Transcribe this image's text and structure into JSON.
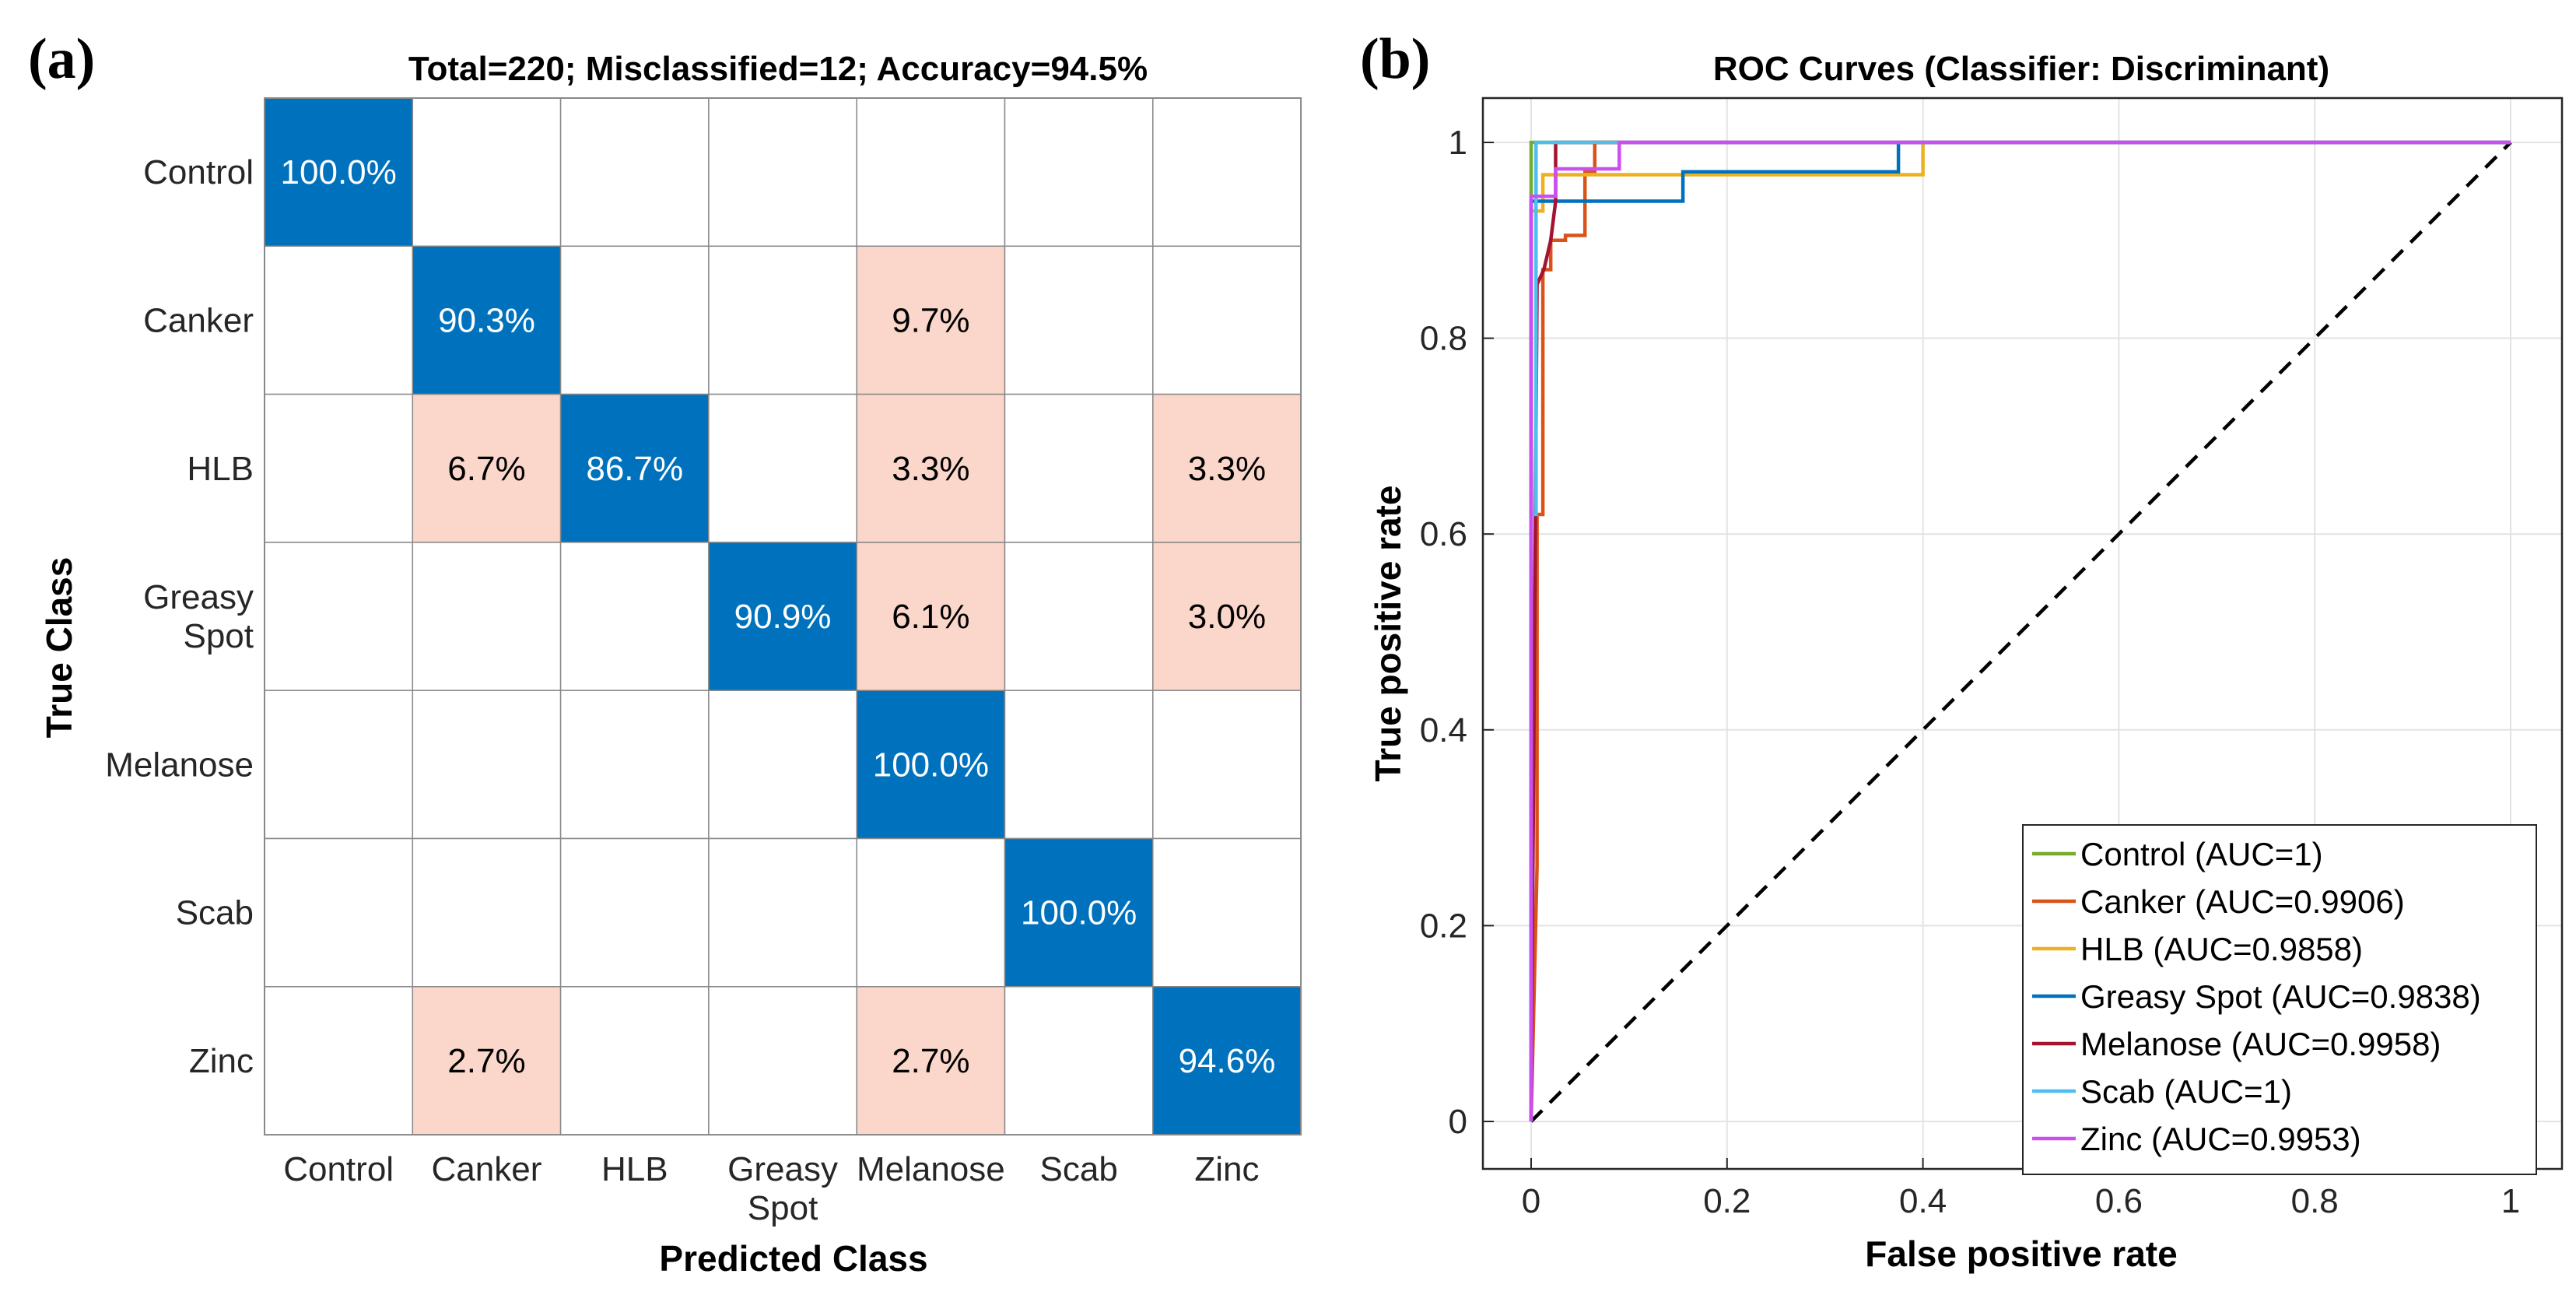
{
  "panel_a": {
    "label": "(a)",
    "chart_data": {
      "type": "heatmap",
      "title": "Total=220; Misclassified=12; Accuracy=94.5%",
      "xlabel": "Predicted Class",
      "ylabel": "True Class",
      "row_labels": [
        [
          "Control"
        ],
        [
          "Canker"
        ],
        [
          "HLB"
        ],
        [
          "Greasy",
          "Spot"
        ],
        [
          "Melanose"
        ],
        [
          "Scab"
        ],
        [
          "Zinc"
        ]
      ],
      "col_labels": [
        [
          "Control"
        ],
        [
          "Canker"
        ],
        [
          "HLB"
        ],
        [
          "Greasy",
          "Spot"
        ],
        [
          "Melanose"
        ],
        [
          "Scab"
        ],
        [
          "Zinc"
        ]
      ],
      "cells": [
        [
          100.0,
          null,
          null,
          null,
          null,
          null,
          null
        ],
        [
          null,
          90.3,
          null,
          null,
          9.7,
          null,
          null
        ],
        [
          null,
          6.7,
          86.7,
          null,
          3.3,
          null,
          3.3
        ],
        [
          null,
          null,
          null,
          90.9,
          6.1,
          null,
          3.0
        ],
        [
          null,
          null,
          null,
          null,
          100.0,
          null,
          null
        ],
        [
          null,
          null,
          null,
          null,
          null,
          100.0,
          null
        ],
        [
          null,
          2.7,
          null,
          null,
          2.7,
          null,
          94.6
        ]
      ],
      "value_suffix": "%",
      "colors": {
        "diagonal": "#0072BD",
        "off_diagonal": "#FAD7CA",
        "diagonal_text": "#ffffff",
        "off_text": "#000000",
        "grid": "#888888"
      }
    }
  },
  "panel_b": {
    "label": "(b)",
    "chart_data": {
      "type": "line",
      "title": "ROC Curves (Classifier: Discriminant)",
      "xlabel": "False positive rate",
      "ylabel": "True positive rate",
      "xlim": [
        0,
        1
      ],
      "ylim": [
        0,
        1
      ],
      "xticks": [
        0,
        0.2,
        0.4,
        0.6,
        0.8,
        1
      ],
      "yticks": [
        0,
        0.2,
        0.4,
        0.6,
        0.8,
        1
      ],
      "xtick_labels": [
        "0",
        "0.2",
        "0.4",
        "0.6",
        "0.8",
        "1"
      ],
      "ytick_labels": [
        "0",
        "0.2",
        "0.4",
        "0.6",
        "0.8",
        "1"
      ],
      "grid": true,
      "legend_position": "bottom-right",
      "series": [
        {
          "name": "Control (AUC=1)",
          "color": "#77AC30",
          "x": [
            0,
            0,
            1
          ],
          "y": [
            0,
            1,
            1
          ]
        },
        {
          "name": "Canker (AUC=0.9906)",
          "color": "#D95319",
          "x": [
            0,
            0.006,
            0.006,
            0.012,
            0.012,
            0.02,
            0.02,
            0.035,
            0.035,
            0.055,
            0.055,
            0.065,
            0.065,
            1
          ],
          "y": [
            0,
            0.26,
            0.62,
            0.62,
            0.87,
            0.87,
            0.9,
            0.9,
            0.905,
            0.905,
            0.97,
            0.97,
            1,
            1
          ]
        },
        {
          "name": "HLB (AUC=0.9858)",
          "color": "#EDB120",
          "x": [
            0,
            0,
            0.012,
            0.012,
            0.06,
            0.06,
            0.4,
            0.4,
            1
          ],
          "y": [
            0,
            0.93,
            0.93,
            0.967,
            0.967,
            0.967,
            0.967,
            1,
            1
          ]
        },
        {
          "name": "Greasy Spot (AUC=0.9838)",
          "color": "#0072BD",
          "x": [
            0,
            0,
            0.015,
            0.015,
            0.155,
            0.155,
            0.375,
            0.375,
            1
          ],
          "y": [
            0,
            0.94,
            0.94,
            0.94,
            0.94,
            0.97,
            0.97,
            1,
            1
          ]
        },
        {
          "name": "Melanose (AUC=0.9958)",
          "color": "#A2142F",
          "x": [
            0,
            0.006,
            0.006,
            0.013,
            0.013,
            0.02,
            0.02,
            0.025,
            0.025,
            1
          ],
          "y": [
            0,
            0.855,
            0.855,
            0.87,
            0.87,
            0.9,
            0.9,
            0.94,
            1,
            1
          ]
        },
        {
          "name": "Scab (AUC=1)",
          "color": "#4DBEEE",
          "x": [
            0,
            0,
            0.005,
            0.005,
            1
          ],
          "y": [
            0,
            0.62,
            0.62,
            1,
            1
          ]
        },
        {
          "name": "Zinc (AUC=0.9953)",
          "color": "#CC4EF2",
          "x": [
            0,
            0,
            0.008,
            0.008,
            0.025,
            0.025,
            0.09,
            0.09,
            1
          ],
          "y": [
            0,
            0.945,
            0.945,
            0.945,
            0.945,
            0.973,
            0.973,
            1,
            1
          ]
        }
      ],
      "reference_line": {
        "x": [
          0,
          1
        ],
        "y": [
          0,
          1
        ],
        "color": "#000000",
        "style": "dashed"
      }
    }
  }
}
